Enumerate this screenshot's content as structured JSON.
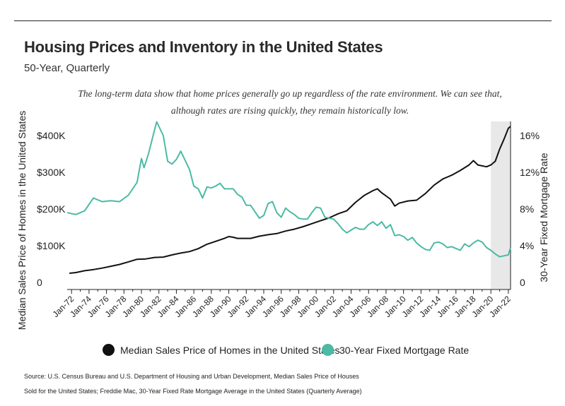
{
  "title": "Housing Prices and Inventory in the United States",
  "subtitle": "50-Year, Quarterly",
  "description_line1": "The long-term data show that home prices generally go up regardless of the rate environment. We can see that,",
  "description_line2": "although rates are rising quickly, they remain historically low.",
  "legend": {
    "series1": "Median Sales Price of Homes in the United States",
    "series2": "30-Year Fixed Mortgage Rate"
  },
  "source_line1": "Source:  U.S. Census Bureau and U.S. Department of Housing and Urban Development, Median Sales Price of Houses",
  "source_line2": "Sold for the United States; Freddie Mac, 30-Year Fixed Rate Mortgage Average in the United States (Quarterly Average)",
  "colors": {
    "price": "#111111",
    "rate": "#4cbaa5",
    "highlight": "#e8e8e8",
    "axis": "#222222"
  },
  "chart_data": {
    "type": "line",
    "xlabel": "",
    "ylabel_left": "Median Sales Price of Homes in the United States",
    "ylabel_right": "30-Year Fixed Mortgage Rate",
    "x_ticks": [
      "Jan-72",
      "Jan-74",
      "Jan-76",
      "Jan-78",
      "Jan-80",
      "Jan-82",
      "Jan-84",
      "Jan-86",
      "Jan-88",
      "Jan-90",
      "Jan-92",
      "Jan-94",
      "Jan-96",
      "Jan-98",
      "Jan-00",
      "Jan-02",
      "Jan-04",
      "Jan-06",
      "Jan-08",
      "Jan-10",
      "Jan-12",
      "Jan-14",
      "Jan-16",
      "Jan-18",
      "Jan-20",
      "Jan-22"
    ],
    "y_left_ticks": [
      "0",
      "$100K",
      "$200K",
      "$300K",
      "$400K"
    ],
    "y_right_ticks": [
      "0",
      "4%",
      "8%",
      "12%",
      "16%"
    ],
    "ylim_left": [
      0,
      400000
    ],
    "ylim_right": [
      0,
      16
    ],
    "xlim": [
      1971.5,
      2022.25
    ],
    "highlight_range": [
      2020.0,
      2022.25
    ],
    "series": [
      {
        "name": "Median Sales Price of Homes in the United States",
        "axis": "left",
        "points": [
          [
            1971.75,
            25000
          ],
          [
            1972.5,
            27000
          ],
          [
            1973.5,
            32000
          ],
          [
            1974.5,
            35000
          ],
          [
            1975.5,
            39000
          ],
          [
            1976.5,
            44000
          ],
          [
            1977.5,
            49000
          ],
          [
            1978.5,
            56000
          ],
          [
            1979.5,
            63000
          ],
          [
            1980.5,
            64000
          ],
          [
            1981.5,
            68000
          ],
          [
            1982.5,
            69000
          ],
          [
            1983.5,
            75000
          ],
          [
            1984.5,
            80000
          ],
          [
            1985.5,
            84000
          ],
          [
            1986.5,
            92000
          ],
          [
            1987.5,
            104000
          ],
          [
            1988.5,
            112000
          ],
          [
            1989.5,
            120000
          ],
          [
            1990.0,
            125000
          ],
          [
            1990.5,
            123000
          ],
          [
            1991.0,
            120000
          ],
          [
            1991.5,
            120000
          ],
          [
            1992.5,
            120000
          ],
          [
            1993.5,
            126000
          ],
          [
            1994.5,
            130000
          ],
          [
            1995.5,
            133000
          ],
          [
            1996.5,
            140000
          ],
          [
            1997.5,
            145000
          ],
          [
            1998.5,
            152000
          ],
          [
            1999.5,
            160000
          ],
          [
            2000.5,
            168000
          ],
          [
            2001.5,
            176000
          ],
          [
            2002.5,
            187000
          ],
          [
            2003.5,
            195000
          ],
          [
            2004.5,
            218000
          ],
          [
            2005.5,
            237000
          ],
          [
            2006.5,
            250000
          ],
          [
            2007.0,
            255000
          ],
          [
            2007.5,
            244000
          ],
          [
            2008.5,
            227000
          ],
          [
            2009.0,
            208000
          ],
          [
            2009.5,
            216000
          ],
          [
            2010.5,
            222000
          ],
          [
            2011.5,
            224000
          ],
          [
            2012.5,
            242000
          ],
          [
            2013.5,
            265000
          ],
          [
            2014.5,
            282000
          ],
          [
            2015.5,
            292000
          ],
          [
            2016.5,
            305000
          ],
          [
            2017.5,
            320000
          ],
          [
            2018.0,
            332000
          ],
          [
            2018.5,
            320000
          ],
          [
            2019.5,
            315000
          ],
          [
            2020.0,
            320000
          ],
          [
            2020.5,
            330000
          ],
          [
            2021.0,
            363000
          ],
          [
            2021.5,
            390000
          ],
          [
            2022.0,
            420000
          ],
          [
            2022.25,
            425000
          ]
        ]
      },
      {
        "name": "30-Year Fixed Mortgage Rate",
        "axis": "right",
        "points": [
          [
            1971.5,
            7.6
          ],
          [
            1972.5,
            7.4
          ],
          [
            1973.5,
            7.8
          ],
          [
            1974.0,
            8.5
          ],
          [
            1974.5,
            9.2
          ],
          [
            1975.0,
            9.0
          ],
          [
            1975.5,
            8.8
          ],
          [
            1976.5,
            8.9
          ],
          [
            1977.5,
            8.8
          ],
          [
            1978.5,
            9.5
          ],
          [
            1979.5,
            10.9
          ],
          [
            1980.0,
            13.5
          ],
          [
            1980.3,
            12.5
          ],
          [
            1980.8,
            14.0
          ],
          [
            1981.5,
            16.6
          ],
          [
            1981.75,
            17.5
          ],
          [
            1982.0,
            17.0
          ],
          [
            1982.5,
            16.0
          ],
          [
            1983.0,
            13.2
          ],
          [
            1983.5,
            12.9
          ],
          [
            1984.0,
            13.4
          ],
          [
            1984.5,
            14.3
          ],
          [
            1985.0,
            13.3
          ],
          [
            1985.5,
            12.3
          ],
          [
            1986.0,
            10.5
          ],
          [
            1986.5,
            10.2
          ],
          [
            1987.0,
            9.2
          ],
          [
            1987.5,
            10.4
          ],
          [
            1988.0,
            10.3
          ],
          [
            1988.5,
            10.5
          ],
          [
            1989.0,
            10.8
          ],
          [
            1989.5,
            10.2
          ],
          [
            1990.0,
            10.2
          ],
          [
            1990.5,
            10.2
          ],
          [
            1991.0,
            9.6
          ],
          [
            1991.5,
            9.3
          ],
          [
            1992.0,
            8.4
          ],
          [
            1992.5,
            8.4
          ],
          [
            1993.0,
            7.7
          ],
          [
            1993.5,
            7.0
          ],
          [
            1994.0,
            7.3
          ],
          [
            1994.5,
            8.6
          ],
          [
            1995.0,
            8.8
          ],
          [
            1995.5,
            7.6
          ],
          [
            1996.0,
            7.1
          ],
          [
            1996.5,
            8.1
          ],
          [
            1997.0,
            7.7
          ],
          [
            1997.5,
            7.4
          ],
          [
            1998.0,
            7.0
          ],
          [
            1998.5,
            6.9
          ],
          [
            1999.0,
            6.9
          ],
          [
            1999.5,
            7.6
          ],
          [
            2000.0,
            8.2
          ],
          [
            2000.5,
            8.1
          ],
          [
            2001.0,
            7.1
          ],
          [
            2001.5,
            7.0
          ],
          [
            2002.0,
            6.9
          ],
          [
            2002.5,
            6.4
          ],
          [
            2003.0,
            5.8
          ],
          [
            2003.5,
            5.4
          ],
          [
            2004.0,
            5.7
          ],
          [
            2004.5,
            6.0
          ],
          [
            2005.0,
            5.8
          ],
          [
            2005.5,
            5.8
          ],
          [
            2006.0,
            6.3
          ],
          [
            2006.5,
            6.6
          ],
          [
            2007.0,
            6.2
          ],
          [
            2007.5,
            6.6
          ],
          [
            2008.0,
            5.9
          ],
          [
            2008.5,
            6.3
          ],
          [
            2009.0,
            5.1
          ],
          [
            2009.5,
            5.2
          ],
          [
            2010.0,
            5.0
          ],
          [
            2010.5,
            4.6
          ],
          [
            2011.0,
            4.9
          ],
          [
            2011.5,
            4.3
          ],
          [
            2012.0,
            3.9
          ],
          [
            2012.5,
            3.6
          ],
          [
            2013.0,
            3.5
          ],
          [
            2013.5,
            4.3
          ],
          [
            2014.0,
            4.4
          ],
          [
            2014.5,
            4.2
          ],
          [
            2015.0,
            3.8
          ],
          [
            2015.5,
            3.9
          ],
          [
            2016.0,
            3.7
          ],
          [
            2016.5,
            3.5
          ],
          [
            2017.0,
            4.2
          ],
          [
            2017.5,
            3.9
          ],
          [
            2018.0,
            4.3
          ],
          [
            2018.5,
            4.6
          ],
          [
            2019.0,
            4.4
          ],
          [
            2019.5,
            3.8
          ],
          [
            2020.0,
            3.5
          ],
          [
            2020.5,
            3.1
          ],
          [
            2021.0,
            2.8
          ],
          [
            2021.5,
            2.9
          ],
          [
            2022.0,
            3.0
          ],
          [
            2022.25,
            3.8
          ]
        ]
      }
    ],
    "grid": false,
    "legend_position": "bottom"
  }
}
